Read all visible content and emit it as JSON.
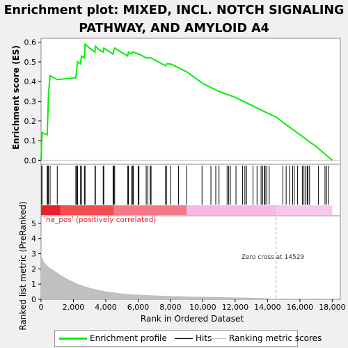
{
  "chart_data": {
    "type": "line",
    "title": "Enrichment plot: MIXED, INCL. NOTCH SIGNALING PATHWAY, AND AMYLOID A4",
    "top_panel": {
      "ylabel": "Enrichment score (ES)",
      "ylim": [
        -0.02,
        0.62
      ],
      "yticks": [
        "0.0",
        "0.1",
        "0.2",
        "0.3",
        "0.4",
        "0.5",
        "0.6"
      ],
      "series": [
        {
          "name": "Enrichment profile",
          "color": "#00ee00",
          "x": [
            0,
            60,
            380,
            420,
            460,
            560,
            1000,
            2150,
            2200,
            2260,
            2440,
            2500,
            2680,
            2720,
            3000,
            3330,
            3360,
            3600,
            3840,
            3880,
            4450,
            4500,
            4550,
            5350,
            5400,
            5600,
            5650,
            5700,
            6000,
            6050,
            6500,
            6600,
            6750,
            6800,
            7700,
            7750,
            8000,
            8500,
            9000,
            10000,
            11000,
            12000,
            13000,
            14000,
            14529,
            15000,
            16000,
            17000,
            18000
          ],
          "y": [
            0.0,
            0.14,
            0.13,
            0.23,
            0.34,
            0.43,
            0.41,
            0.42,
            0.46,
            0.5,
            0.49,
            0.53,
            0.52,
            0.59,
            0.57,
            0.55,
            0.58,
            0.56,
            0.55,
            0.57,
            0.54,
            0.56,
            0.57,
            0.53,
            0.55,
            0.54,
            0.55,
            0.55,
            0.54,
            0.54,
            0.52,
            0.52,
            0.52,
            0.52,
            0.48,
            0.49,
            0.49,
            0.47,
            0.45,
            0.39,
            0.35,
            0.32,
            0.28,
            0.24,
            0.22,
            0.19,
            0.13,
            0.07,
            0.0
          ]
        }
      ]
    },
    "hits": {
      "name": "Hits",
      "color": "#000000",
      "positions": [
        40,
        60,
        380,
        420,
        450,
        560,
        1000,
        2150,
        2200,
        2260,
        2440,
        2500,
        2680,
        2720,
        3330,
        3360,
        3840,
        3880,
        4450,
        4500,
        4550,
        5350,
        5400,
        5600,
        5650,
        5700,
        6000,
        6050,
        6500,
        6600,
        6750,
        6800,
        7700,
        7750,
        8000,
        8500,
        9000,
        9950,
        10500,
        10800,
        11000,
        11500,
        11600,
        11700,
        12050,
        12450,
        12600,
        12700,
        13100,
        13350,
        13600,
        13700,
        13800,
        13850,
        13950,
        14100,
        14950,
        15150,
        15350,
        15550,
        15650,
        15850,
        16150,
        16250,
        16350,
        16450,
        16500,
        16600,
        17150,
        17550,
        17650,
        17750
      ]
    },
    "gradient_bar": {
      "positive_label": "'na_pos' (positively correlated)"
    },
    "bottom_panel": {
      "type": "area",
      "name": "Ranking metric scores",
      "color": "#c0c0c0",
      "ylabel": "Ranked list metric (PreRanked)",
      "xlabel": "Rank in Ordered Dataset",
      "ylim": [
        0,
        5.5
      ],
      "yticks": [
        "0",
        "1",
        "2",
        "3",
        "4",
        "5"
      ],
      "x": [
        0,
        50,
        150,
        300,
        500,
        800,
        1200,
        1700,
        2300,
        3000,
        4000,
        5000,
        6000,
        7000,
        8000,
        9000,
        10000,
        11000,
        12000,
        13000,
        14000,
        14529,
        14600
      ],
      "y": [
        3.3,
        2.8,
        2.5,
        2.3,
        2.1,
        1.9,
        1.6,
        1.3,
        1.0,
        0.75,
        0.52,
        0.38,
        0.3,
        0.25,
        0.21,
        0.18,
        0.16,
        0.14,
        0.12,
        0.1,
        0.07,
        0.0,
        0.0
      ],
      "zero_cross_label": "Zero cross at 14529",
      "zero_cross": 14529
    },
    "xlim": [
      0,
      18500
    ],
    "xticks": [
      0,
      2000,
      4000,
      6000,
      8000,
      10000,
      12000,
      14000,
      16000,
      18000
    ],
    "xtick_labels": [
      "0",
      "2,000",
      "4,000",
      "6,000",
      "8,000",
      "10,000",
      "12,000",
      "14,000",
      "16,000",
      "18,000"
    ]
  },
  "legend": {
    "items": [
      {
        "label": "Enrichment profile",
        "color": "#00ee00"
      },
      {
        "label": "Hits",
        "color": "#000000"
      },
      {
        "label": "Ranking metric scores",
        "color": "#c0c0c0"
      }
    ]
  }
}
